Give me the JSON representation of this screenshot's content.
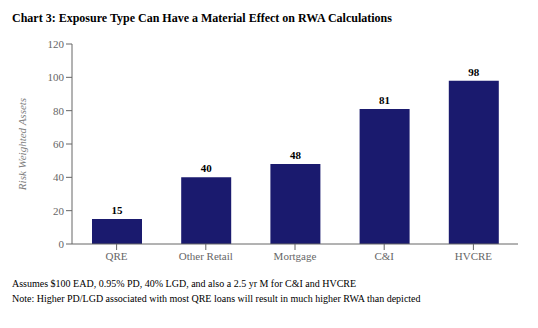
{
  "chart_data": {
    "type": "bar",
    "title": "Chart 3: Exposure Type Can Have a Material Effect on RWA Calculations",
    "categories": [
      "QRE",
      "Other Retail",
      "Mortgage",
      "C&I",
      "HVCRE"
    ],
    "values": [
      15,
      40,
      48,
      81,
      98
    ],
    "color": "#1a1a6e",
    "ylabel": "Risk Weighted Assets",
    "ylim": [
      0,
      120
    ],
    "yticks": [
      0,
      20,
      40,
      60,
      80,
      100,
      120
    ],
    "grid": false,
    "data_labels": true,
    "annotations": [
      "Assumes $100 EAD, 0.95% PD, 40% LGD, and also a 2.5 yr M for C&I and HVCRE",
      "Note: Higher PD/LGD associated with most QRE loans will result in much higher RWA than depicted"
    ]
  }
}
